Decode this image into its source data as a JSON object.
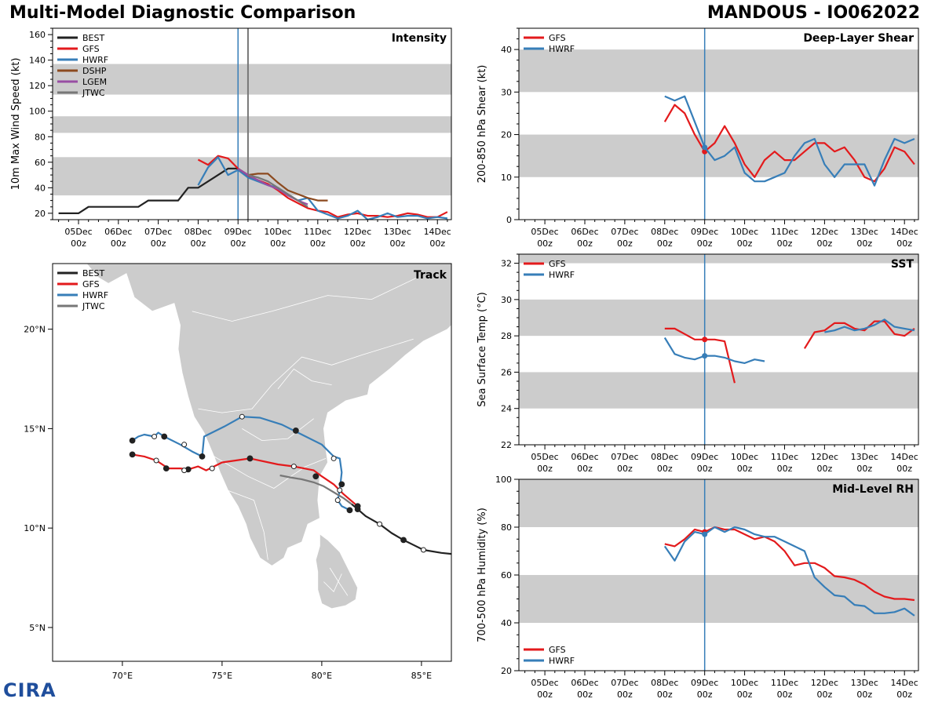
{
  "header": {
    "title_left": "Multi-Model Diagnostic Comparison",
    "title_right": "MANDOUS - IO062022"
  },
  "logo": {
    "text": "CIRA"
  },
  "colors": {
    "BEST": "#222222",
    "GFS": "#e31a1c",
    "HWRF": "#377eb8",
    "DSHP": "#8c4a1f",
    "LGEM": "#984ea3",
    "JTWC": "#777777",
    "band": "#cccccc",
    "land": "#cccccc",
    "vline_hwrf": "#377eb8",
    "vline_jtwc": "#777777"
  },
  "time_axis": {
    "labels": [
      "05Dec\n00z",
      "06Dec\n00z",
      "07Dec\n00z",
      "08Dec\n00z",
      "09Dec\n00z",
      "10Dec\n00z",
      "11Dec\n00z",
      "12Dec\n00z",
      "13Dec\n00z",
      "14Dec\n00z"
    ],
    "range_days": [
      4.35,
      14.35
    ],
    "current_time_day": 9.0,
    "jtwc_time_day": 9.25
  },
  "chart_data": [
    {
      "id": "intensity",
      "type": "line",
      "title": "Intensity",
      "ylabel": "10m Max Wind Speed (kt)",
      "ylim": [
        15,
        165
      ],
      "yticks": [
        20,
        40,
        60,
        80,
        100,
        120,
        140,
        160
      ],
      "bands": [
        [
          34,
          64
        ],
        [
          83,
          96
        ],
        [
          113,
          137
        ]
      ],
      "legend": [
        "BEST",
        "GFS",
        "HWRF",
        "DSHP",
        "LGEM",
        "JTWC"
      ],
      "series": [
        {
          "name": "BEST",
          "x": [
            4.5,
            5.0,
            5.25,
            5.5,
            6.0,
            6.5,
            6.75,
            7.0,
            7.5,
            7.75,
            8.0,
            8.5,
            8.75,
            9.0,
            9.25
          ],
          "values": [
            20,
            20,
            25,
            25,
            25,
            25,
            30,
            30,
            30,
            40,
            40,
            50,
            55,
            55,
            50
          ]
        },
        {
          "name": "GFS",
          "x": [
            8.0,
            8.25,
            8.5,
            8.75,
            9.0,
            9.25,
            9.5,
            9.75,
            10.0,
            10.25,
            10.5,
            10.75,
            11.0,
            11.25,
            11.5,
            11.75,
            12.0,
            12.25,
            12.5,
            12.75,
            13.0,
            13.25,
            13.5,
            13.75,
            14.0,
            14.25
          ],
          "values": [
            62,
            58,
            65,
            63,
            55,
            49,
            46,
            43,
            38,
            32,
            28,
            24,
            22,
            21,
            17,
            19,
            20,
            18,
            18,
            17,
            18,
            20,
            19,
            17,
            17,
            21
          ]
        },
        {
          "name": "HWRF",
          "x": [
            8.0,
            8.25,
            8.5,
            8.75,
            9.0,
            9.25,
            9.5,
            9.75,
            10.0,
            10.25,
            10.5,
            10.75,
            11.0,
            11.25,
            11.5,
            11.75,
            12.0,
            12.25,
            12.5,
            12.75,
            13.0,
            13.25,
            13.5,
            13.75,
            14.0,
            14.25
          ],
          "values": [
            42,
            56,
            64,
            50,
            54,
            48,
            45,
            42,
            40,
            35,
            30,
            32,
            22,
            19,
            16,
            18,
            22,
            15,
            17,
            20,
            17,
            18,
            18,
            16,
            17,
            16
          ]
        },
        {
          "name": "DSHP",
          "x": [
            9.0,
            9.25,
            9.5,
            9.75,
            10.0,
            10.25,
            10.5,
            10.75,
            11.0,
            11.25
          ],
          "values": [
            55,
            50,
            51,
            51,
            44,
            38,
            35,
            32,
            30,
            30
          ]
        },
        {
          "name": "LGEM",
          "x": [
            9.0,
            9.25,
            9.5,
            9.75,
            10.0,
            10.25,
            10.5,
            10.75
          ],
          "values": [
            55,
            50,
            46,
            42,
            39,
            34,
            30,
            27
          ]
        },
        {
          "name": "JTWC",
          "x": [
            9.25,
            9.5,
            9.75,
            10.0,
            10.25,
            10.5,
            10.75
          ],
          "values": [
            50,
            48,
            45,
            40,
            35,
            30,
            25
          ]
        }
      ]
    },
    {
      "id": "shear",
      "type": "line",
      "title": "Deep-Layer Shear",
      "ylabel": "200-850 hPa Shear (kt)",
      "ylim": [
        0,
        45
      ],
      "yticks": [
        0,
        10,
        20,
        30,
        40
      ],
      "bands": [
        [
          10,
          20
        ],
        [
          30,
          40
        ]
      ],
      "legend": [
        "GFS",
        "HWRF"
      ],
      "series": [
        {
          "name": "GFS",
          "x": [
            8.0,
            8.25,
            8.5,
            8.75,
            9.0,
            9.25,
            9.5,
            9.75,
            10.0,
            10.25,
            10.5,
            10.75,
            11.0,
            11.25,
            11.5,
            11.75,
            12.0,
            12.25,
            12.5,
            12.75,
            13.0,
            13.25,
            13.5,
            13.75,
            14.0,
            14.25
          ],
          "values": [
            23,
            27,
            25,
            20,
            16,
            18,
            22,
            18,
            13,
            10,
            14,
            16,
            14,
            14,
            16,
            18,
            18,
            16,
            17,
            14,
            10,
            9,
            12,
            17,
            16,
            13
          ]
        },
        {
          "name": "HWRF",
          "x": [
            8.0,
            8.25,
            8.5,
            8.75,
            9.0,
            9.25,
            9.5,
            9.75,
            10.0,
            10.25,
            10.5,
            10.75,
            11.0,
            11.25,
            11.5,
            11.75,
            12.0,
            12.25,
            12.5,
            12.75,
            13.0,
            13.25,
            13.5,
            13.75,
            14.0,
            14.25
          ],
          "values": [
            29,
            28,
            29,
            23,
            17,
            14,
            15,
            17,
            11,
            9,
            9,
            10,
            11,
            15,
            18,
            19,
            13,
            10,
            13,
            13,
            13,
            8,
            14,
            19,
            18,
            19
          ]
        }
      ]
    },
    {
      "id": "sst",
      "type": "line",
      "title": "SST",
      "ylabel": "Sea Surface Temp (°C)",
      "ylim": [
        22,
        32.5
      ],
      "yticks": [
        22,
        24,
        26,
        28,
        30,
        32
      ],
      "bands": [
        [
          24,
          26
        ],
        [
          28,
          30
        ],
        [
          32,
          32.5
        ]
      ],
      "legend": [
        "GFS",
        "HWRF"
      ],
      "series": [
        {
          "name": "GFS",
          "segments": [
            {
              "x": [
                8.0,
                8.25,
                8.5,
                8.75,
                9.0,
                9.25,
                9.5,
                9.75
              ],
              "values": [
                28.4,
                28.4,
                28.1,
                27.8,
                27.8,
                27.8,
                27.7,
                25.4
              ]
            },
            {
              "x": [
                11.5,
                11.75,
                12.0,
                12.25,
                12.5,
                12.75,
                13.0,
                13.25,
                13.5,
                13.75,
                14.0,
                14.25
              ],
              "values": [
                27.3,
                28.2,
                28.3,
                28.7,
                28.7,
                28.4,
                28.3,
                28.8,
                28.8,
                28.1,
                28.0,
                28.4
              ]
            }
          ]
        },
        {
          "name": "HWRF",
          "segments": [
            {
              "x": [
                8.0,
                8.25,
                8.5,
                8.75,
                9.0,
                9.25,
                9.5,
                9.75,
                10.0,
                10.25,
                10.5
              ],
              "values": [
                27.9,
                27.0,
                26.8,
                26.7,
                26.9,
                26.9,
                26.8,
                26.6,
                26.5,
                26.7,
                26.6
              ]
            },
            {
              "x": [
                12.0,
                12.25,
                12.5,
                12.75,
                13.0,
                13.25,
                13.5,
                13.75,
                14.0,
                14.25
              ],
              "values": [
                28.2,
                28.3,
                28.5,
                28.3,
                28.4,
                28.6,
                28.9,
                28.5,
                28.4,
                28.3
              ]
            }
          ]
        }
      ]
    },
    {
      "id": "rh",
      "type": "line",
      "title": "Mid-Level RH",
      "ylabel": "700-500 hPa Humidity (%)",
      "ylim": [
        20,
        100
      ],
      "yticks": [
        20,
        40,
        60,
        80,
        100
      ],
      "bands": [
        [
          40,
          60
        ],
        [
          80,
          100
        ]
      ],
      "legend": [
        "GFS",
        "HWRF"
      ],
      "series": [
        {
          "name": "GFS",
          "x": [
            8.0,
            8.25,
            8.5,
            8.75,
            9.0,
            9.25,
            9.5,
            9.75,
            10.0,
            10.25,
            10.5,
            10.75,
            11.0,
            11.25,
            11.5,
            11.75,
            12.0,
            12.25,
            12.5,
            12.75,
            13.0,
            13.25,
            13.5,
            13.75,
            14.0,
            14.25
          ],
          "values": [
            73,
            72,
            75,
            79,
            78,
            80,
            79,
            79,
            77,
            75,
            76,
            74,
            70,
            64,
            65,
            65,
            63,
            59.5,
            59,
            58,
            56,
            53,
            51,
            50,
            50,
            49.5
          ]
        },
        {
          "name": "HWRF",
          "x": [
            8.0,
            8.25,
            8.5,
            8.75,
            9.0,
            9.25,
            9.5,
            9.75,
            10.0,
            10.25,
            10.5,
            10.75,
            11.0,
            11.25,
            11.5,
            11.75,
            12.0,
            12.25,
            12.5,
            12.75,
            13.0,
            13.25,
            13.5,
            13.75,
            14.0,
            14.25
          ],
          "values": [
            72,
            66,
            74,
            78,
            77,
            80,
            78,
            80,
            79,
            77,
            76,
            76,
            74,
            72,
            70,
            59,
            55,
            51.5,
            51,
            47.5,
            47,
            44,
            44,
            44.5,
            46,
            43
          ]
        }
      ]
    },
    {
      "id": "track",
      "type": "line",
      "title": "Track",
      "xlim": [
        66.5,
        86.5
      ],
      "ylim": [
        3.3,
        23.3
      ],
      "xticks": [
        70,
        75,
        80,
        85
      ],
      "xtick_labels": [
        "70°E",
        "75°E",
        "80°E",
        "85°E"
      ],
      "yticks": [
        5,
        10,
        15,
        20
      ],
      "ytick_labels": [
        "5°N",
        "10°N",
        "15°N",
        "20°N"
      ],
      "legend": [
        "BEST",
        "GFS",
        "HWRF",
        "JTWC"
      ],
      "series": [
        {
          "name": "BEST",
          "lon": [
            86.5,
            86.0,
            85.1,
            84.6,
            84.1,
            83.5,
            82.9,
            82.2,
            81.8,
            81.5
          ],
          "lat": [
            8.7,
            8.75,
            8.9,
            9.15,
            9.4,
            9.75,
            10.2,
            10.6,
            10.95,
            11.2
          ],
          "markers": [
            {
              "lon": 85.1,
              "lat": 8.9,
              "open": true
            },
            {
              "lon": 84.1,
              "lat": 9.4,
              "open": false
            },
            {
              "lon": 82.9,
              "lat": 10.2,
              "open": true
            },
            {
              "lon": 81.8,
              "lat": 10.95,
              "open": false
            }
          ]
        },
        {
          "name": "GFS",
          "lon": [
            81.8,
            81.1,
            80.6,
            80.0,
            79.6,
            78.6,
            77.8,
            76.4,
            75.0,
            74.2,
            73.8,
            73.3,
            72.9,
            72.3,
            71.7,
            71.1,
            70.5
          ],
          "lat": [
            11.1,
            11.7,
            12.2,
            12.6,
            12.9,
            13.1,
            13.2,
            13.5,
            13.3,
            12.9,
            13.1,
            12.95,
            13.0,
            13.0,
            13.4,
            13.6,
            13.7
          ],
          "markers": [
            {
              "lon": 81.8,
              "lat": 11.1,
              "open": false
            },
            {
              "lon": 79.7,
              "lat": 12.6,
              "open": false
            },
            {
              "lon": 78.6,
              "lat": 13.1,
              "open": true
            },
            {
              "lon": 76.4,
              "lat": 13.5,
              "open": false
            },
            {
              "lon": 74.5,
              "lat": 13.0,
              "open": true
            },
            {
              "lon": 73.3,
              "lat": 12.95,
              "open": false
            },
            {
              "lon": 73.1,
              "lat": 12.9,
              "open": true
            },
            {
              "lon": 72.2,
              "lat": 13.0,
              "open": false
            },
            {
              "lon": 71.7,
              "lat": 13.4,
              "open": true
            },
            {
              "lon": 70.5,
              "lat": 13.7,
              "open": false
            }
          ]
        },
        {
          "name": "HWRF",
          "lon": [
            81.4,
            81.0,
            80.8,
            80.9,
            81.0,
            80.9,
            80.6,
            80.0,
            79.0,
            78.0,
            76.9,
            76.0,
            75.1,
            74.1,
            74.0,
            73.5,
            72.9,
            72.1,
            71.8,
            71.6,
            71.1,
            70.8,
            70.5
          ],
          "lat": [
            10.9,
            11.1,
            11.4,
            11.9,
            12.8,
            13.5,
            13.6,
            14.2,
            14.7,
            15.2,
            15.55,
            15.6,
            15.1,
            14.6,
            13.6,
            13.85,
            14.2,
            14.6,
            14.8,
            14.6,
            14.7,
            14.6,
            14.4
          ],
          "markers": [
            {
              "lon": 81.4,
              "lat": 10.9,
              "open": false
            },
            {
              "lon": 80.8,
              "lat": 11.4,
              "open": true
            },
            {
              "lon": 80.9,
              "lat": 11.9,
              "open": true
            },
            {
              "lon": 81.0,
              "lat": 12.2,
              "open": false
            },
            {
              "lon": 80.6,
              "lat": 13.5,
              "open": true
            },
            {
              "lon": 78.7,
              "lat": 14.9,
              "open": false
            },
            {
              "lon": 76.0,
              "lat": 15.6,
              "open": true
            },
            {
              "lon": 74.0,
              "lat": 13.6,
              "open": false
            },
            {
              "lon": 73.1,
              "lat": 14.2,
              "open": true
            },
            {
              "lon": 72.1,
              "lat": 14.6,
              "open": false
            },
            {
              "lon": 71.6,
              "lat": 14.6,
              "open": true
            },
            {
              "lon": 70.5,
              "lat": 14.4,
              "open": false
            }
          ]
        },
        {
          "name": "JTWC",
          "lon": [
            81.5,
            81.1,
            80.6,
            80.1,
            79.6,
            79.0,
            78.4,
            77.9
          ],
          "lat": [
            11.2,
            11.5,
            11.8,
            12.1,
            12.3,
            12.45,
            12.55,
            12.65
          ],
          "markers": []
        }
      ]
    }
  ]
}
